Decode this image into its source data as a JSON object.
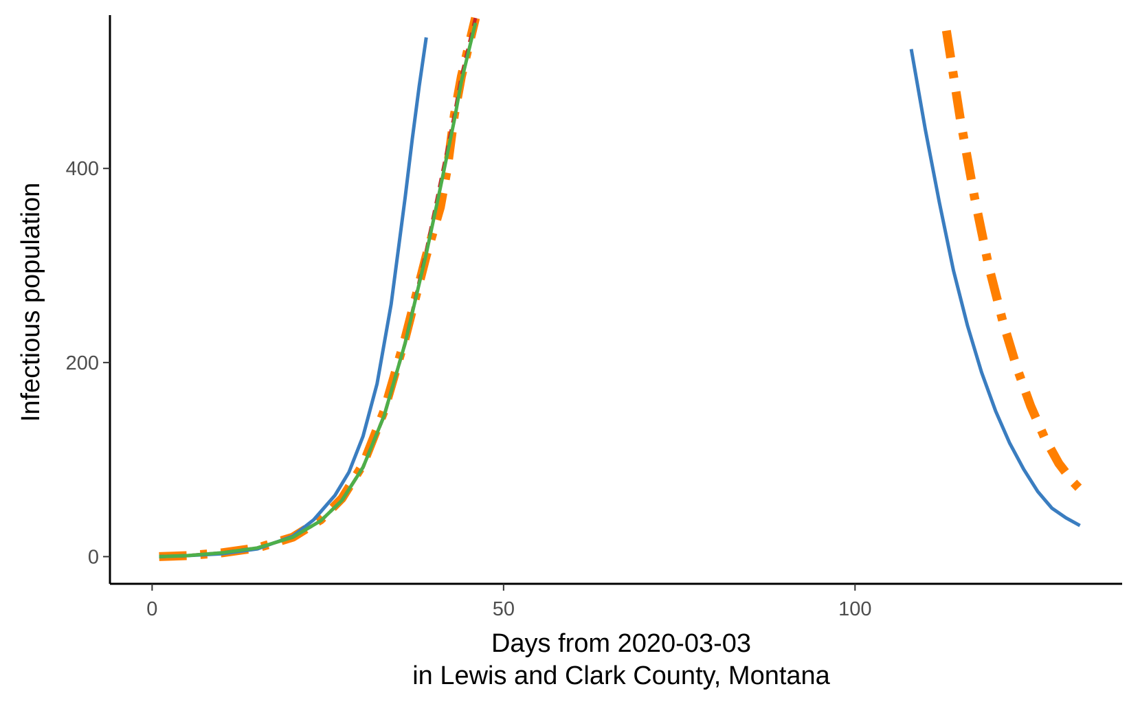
{
  "chart_data": {
    "type": "line",
    "xlabel_line1": "Days from 2020-03-03",
    "xlabel_line2": "in Lewis and Clark County, Montana",
    "ylabel": "Infectious population",
    "xlim": [
      -6,
      138
    ],
    "ylim": [
      -28,
      558
    ],
    "x_ticks": [
      0,
      50,
      100
    ],
    "y_ticks": [
      0,
      200,
      400
    ],
    "grid": false,
    "legend": "none",
    "series": [
      {
        "color": "#3A7DC0",
        "style": "solid",
        "segments": [
          {
            "x": [
              1,
              5,
              10,
              15,
              20,
              23,
              26,
              28,
              30,
              32,
              34,
              35,
              36,
              37,
              38,
              39
            ],
            "y": [
              0,
              1,
              3,
              8,
              21,
              38,
              63,
              87,
              124,
              178,
              260,
              315,
              370,
              430,
              485,
              535
            ]
          },
          {
            "x": [
              108,
              110,
              112,
              114,
              116,
              118,
              120,
              122,
              124,
              126,
              128,
              130,
              132
            ],
            "y": [
              523,
              440,
              365,
              295,
              238,
              190,
              150,
              117,
              90,
              67,
              50,
              40,
              32
            ]
          }
        ]
      },
      {
        "color": "#C7242A",
        "style": "dashed",
        "segments": [
          {
            "x": [
              1,
              5,
              10,
              15,
              20,
              24,
              27,
              30,
              33,
              36,
              39,
              41,
              43,
              44,
              45,
              46
            ],
            "y": [
              0,
              1,
              4,
              9,
              20,
              37,
              58,
              92,
              145,
              220,
              315,
              385,
              455,
              495,
              525,
              555
            ]
          }
        ]
      },
      {
        "color": "#FF7F00",
        "style": "dashdot",
        "segments": [
          {
            "x": [
              1,
              5,
              10,
              15,
              20,
              24,
              27,
              30,
              33,
              36,
              39,
              41,
              42,
              43,
              44,
              45,
              46
            ],
            "y": [
              0,
              1,
              4,
              9,
              20,
              38,
              60,
              95,
              150,
              225,
              310,
              360,
              400,
              455,
              495,
              525,
              555
            ]
          },
          {
            "x": [
              113,
              115,
              117,
              119,
              121,
              123,
              125,
              127,
              129,
              131,
              133
            ],
            "y": [
              542,
              450,
              370,
              300,
              243,
              195,
              155,
              122,
              96,
              77,
              62
            ]
          }
        ]
      },
      {
        "color": "#4DAF4A",
        "style": "solid",
        "segments": [
          {
            "x": [
              1,
              5,
              10,
              15,
              20,
              24,
              27,
              30,
              33,
              36,
              39,
              41,
              43,
              44,
              45,
              46
            ],
            "y": [
              0,
              1,
              4,
              9,
              20,
              37,
              58,
              92,
              145,
              220,
              312,
              380,
              450,
              490,
              520,
              550
            ]
          }
        ]
      }
    ]
  }
}
